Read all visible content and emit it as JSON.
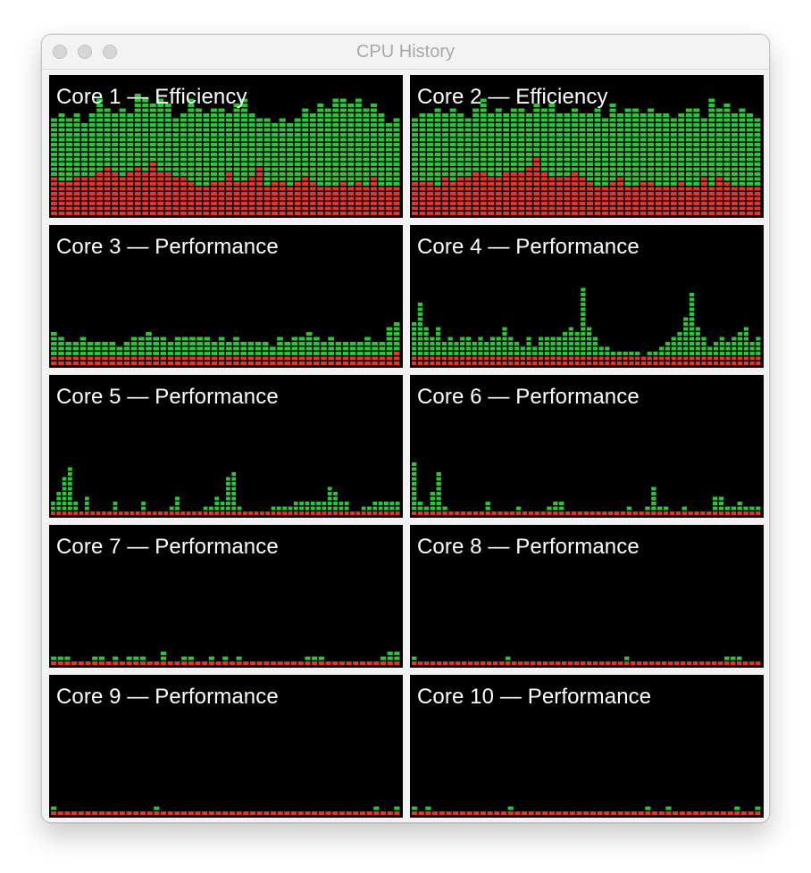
{
  "window": {
    "title": "CPU History"
  },
  "colors": {
    "user": "#2ec43a",
    "system": "#e8342b",
    "background": "#000000"
  },
  "cores": [
    {
      "label": "Core 1 — Efficiency",
      "total": [
        20,
        21,
        20,
        21,
        19,
        21,
        24,
        22,
        21,
        22,
        21,
        25,
        24,
        23,
        24,
        23,
        20,
        21,
        24,
        22,
        21,
        22,
        22,
        21,
        23,
        24,
        21,
        20,
        20,
        19,
        20,
        19,
        20,
        22,
        21,
        23,
        22,
        24,
        24,
        23,
        24,
        22,
        23,
        21,
        19,
        20
      ],
      "system": [
        8,
        7,
        7,
        8,
        8,
        8,
        9,
        10,
        9,
        8,
        9,
        10,
        9,
        11,
        9,
        9,
        8,
        8,
        7,
        6,
        6,
        7,
        7,
        9,
        7,
        7,
        8,
        10,
        6,
        7,
        7,
        6,
        7,
        8,
        7,
        6,
        6,
        6,
        7,
        6,
        7,
        6,
        8,
        6,
        6,
        6
      ]
    },
    {
      "label": "Core 2 — Efficiency",
      "total": [
        20,
        21,
        21,
        22,
        21,
        22,
        21,
        20,
        22,
        24,
        21,
        22,
        21,
        22,
        22,
        21,
        23,
        22,
        23,
        21,
        21,
        22,
        21,
        21,
        22,
        20,
        23,
        21,
        22,
        22,
        21,
        22,
        21,
        21,
        20,
        21,
        22,
        22,
        20,
        24,
        22,
        23,
        21,
        22,
        21,
        20
      ],
      "system": [
        7,
        7,
        7,
        6,
        8,
        7,
        8,
        8,
        9,
        9,
        8,
        8,
        9,
        9,
        9,
        10,
        12,
        9,
        8,
        8,
        8,
        9,
        8,
        7,
        6,
        6,
        7,
        8,
        6,
        6,
        7,
        7,
        6,
        6,
        6,
        7,
        6,
        6,
        8,
        6,
        8,
        7,
        6,
        6,
        6,
        6
      ]
    },
    {
      "label": "Core 3 — Performance",
      "total": [
        7,
        6,
        5,
        5,
        6,
        5,
        5,
        5,
        5,
        4,
        5,
        6,
        6,
        7,
        6,
        6,
        5,
        6,
        6,
        6,
        6,
        6,
        5,
        6,
        5,
        6,
        5,
        5,
        5,
        5,
        4,
        6,
        5,
        6,
        6,
        7,
        6,
        5,
        6,
        5,
        5,
        5,
        5,
        6,
        5,
        5,
        8,
        9
      ],
      "system": [
        2,
        2,
        2,
        2,
        2,
        2,
        2,
        2,
        2,
        2,
        2,
        2,
        2,
        2,
        2,
        2,
        2,
        2,
        2,
        2,
        2,
        2,
        2,
        2,
        2,
        2,
        2,
        2,
        2,
        2,
        2,
        2,
        2,
        2,
        2,
        2,
        2,
        2,
        2,
        2,
        2,
        2,
        2,
        2,
        2,
        2,
        2,
        3
      ]
    },
    {
      "label": "Core 4 — Performance",
      "total": [
        9,
        13,
        8,
        6,
        8,
        5,
        6,
        5,
        6,
        6,
        5,
        6,
        5,
        6,
        6,
        8,
        6,
        5,
        4,
        6,
        4,
        6,
        6,
        6,
        6,
        7,
        8,
        7,
        16,
        8,
        6,
        4,
        4,
        3,
        3,
        3,
        3,
        3,
        2,
        3,
        3,
        4,
        5,
        6,
        7,
        10,
        15,
        8,
        6,
        4,
        5,
        6,
        5,
        6,
        7,
        8,
        5,
        6
      ],
      "system": [
        2,
        2,
        2,
        2,
        2,
        2,
        2,
        2,
        2,
        2,
        2,
        2,
        2,
        2,
        2,
        2,
        2,
        2,
        2,
        2,
        2,
        2,
        2,
        2,
        2,
        2,
        2,
        2,
        2,
        2,
        2,
        2,
        2,
        2,
        2,
        2,
        2,
        2,
        2,
        2,
        2,
        2,
        2,
        2,
        2,
        2,
        2,
        2,
        2,
        2,
        2,
        2,
        2,
        2,
        2,
        2,
        2,
        2
      ]
    },
    {
      "label": "Core 5 — Performance",
      "total": [
        3,
        5,
        8,
        10,
        3,
        1,
        4,
        1,
        1,
        1,
        1,
        3,
        1,
        1,
        1,
        1,
        3,
        1,
        1,
        1,
        1,
        2,
        4,
        1,
        1,
        1,
        1,
        2,
        2,
        4,
        3,
        8,
        9,
        2,
        1,
        1,
        1,
        1,
        1,
        2,
        2,
        2,
        2,
        3,
        3,
        3,
        3,
        3,
        3,
        6,
        5,
        3,
        3,
        1,
        1,
        2,
        2,
        3,
        3,
        3,
        3,
        3
      ],
      "system": [
        1,
        1,
        1,
        1,
        1,
        1,
        1,
        1,
        1,
        1,
        1,
        1,
        1,
        1,
        1,
        1,
        1,
        1,
        1,
        1,
        1,
        1,
        1,
        1,
        1,
        1,
        1,
        1,
        1,
        1,
        1,
        1,
        1,
        1,
        1,
        1,
        1,
        1,
        1,
        1,
        1,
        1,
        1,
        1,
        1,
        1,
        1,
        1,
        1,
        1,
        1,
        1,
        1,
        1,
        1,
        1,
        1,
        1,
        1,
        1,
        1,
        1
      ]
    },
    {
      "label": "Core 6 — Performance",
      "total": [
        11,
        3,
        2,
        5,
        9,
        2,
        1,
        1,
        1,
        1,
        1,
        1,
        3,
        1,
        1,
        1,
        1,
        2,
        1,
        1,
        1,
        1,
        2,
        3,
        3,
        1,
        1,
        1,
        1,
        1,
        1,
        1,
        1,
        1,
        1,
        2,
        1,
        1,
        2,
        6,
        2,
        2,
        1,
        1,
        2,
        1,
        1,
        1,
        1,
        4,
        4,
        2,
        2,
        3,
        2,
        2,
        2
      ],
      "system": [
        1,
        1,
        1,
        1,
        1,
        1,
        1,
        1,
        1,
        1,
        1,
        1,
        1,
        1,
        1,
        1,
        1,
        1,
        1,
        1,
        1,
        1,
        1,
        1,
        1,
        1,
        1,
        1,
        1,
        1,
        1,
        1,
        1,
        1,
        1,
        1,
        1,
        1,
        1,
        1,
        1,
        1,
        1,
        1,
        1,
        1,
        1,
        1,
        1,
        1,
        1,
        1,
        1,
        1,
        1,
        1,
        1
      ]
    },
    {
      "label": "Core 7 — Performance",
      "total": [
        2,
        2,
        2,
        1,
        1,
        1,
        2,
        2,
        1,
        2,
        1,
        2,
        2,
        2,
        1,
        1,
        3,
        1,
        1,
        2,
        2,
        1,
        1,
        2,
        1,
        2,
        1,
        2,
        1,
        1,
        1,
        1,
        1,
        1,
        1,
        1,
        1,
        2,
        2,
        2,
        1,
        1,
        1,
        1,
        1,
        1,
        1,
        1,
        2,
        3,
        3
      ],
      "system": [
        1,
        1,
        1,
        1,
        1,
        1,
        1,
        1,
        1,
        1,
        1,
        1,
        1,
        1,
        1,
        1,
        1,
        1,
        1,
        1,
        1,
        1,
        1,
        1,
        1,
        1,
        1,
        1,
        1,
        1,
        1,
        1,
        1,
        1,
        1,
        1,
        1,
        1,
        1,
        1,
        1,
        1,
        1,
        1,
        1,
        1,
        1,
        1,
        1,
        1,
        1
      ]
    },
    {
      "label": "Core 8 — Performance",
      "total": [
        2,
        1,
        1,
        1,
        1,
        1,
        1,
        1,
        1,
        1,
        1,
        1,
        1,
        1,
        1,
        2,
        1,
        1,
        1,
        1,
        1,
        1,
        1,
        1,
        1,
        1,
        1,
        1,
        1,
        1,
        1,
        1,
        1,
        1,
        2,
        1,
        1,
        1,
        1,
        1,
        1,
        1,
        1,
        1,
        1,
        1,
        1,
        1,
        1,
        1,
        2,
        2,
        2,
        1,
        1,
        1
      ],
      "system": [
        1,
        1,
        1,
        1,
        1,
        1,
        1,
        1,
        1,
        1,
        1,
        1,
        1,
        1,
        1,
        1,
        1,
        1,
        1,
        1,
        1,
        1,
        1,
        1,
        1,
        1,
        1,
        1,
        1,
        1,
        1,
        1,
        1,
        1,
        1,
        1,
        1,
        1,
        1,
        1,
        1,
        1,
        1,
        1,
        1,
        1,
        1,
        1,
        1,
        1,
        1,
        1,
        1,
        1,
        1,
        1
      ]
    },
    {
      "label": "Core 9 — Performance",
      "total": [
        2,
        1,
        1,
        1,
        1,
        1,
        1,
        1,
        1,
        1,
        1,
        1,
        1,
        1,
        1,
        2,
        1,
        1,
        1,
        1,
        1,
        1,
        1,
        1,
        1,
        1,
        1,
        1,
        1,
        1,
        1,
        1,
        1,
        1,
        1,
        1,
        1,
        1,
        1,
        1,
        1,
        1,
        1,
        1,
        1,
        1,
        1,
        2,
        1,
        1,
        2
      ],
      "system": [
        1,
        1,
        1,
        1,
        1,
        1,
        1,
        1,
        1,
        1,
        1,
        1,
        1,
        1,
        1,
        1,
        1,
        1,
        1,
        1,
        1,
        1,
        1,
        1,
        1,
        1,
        1,
        1,
        1,
        1,
        1,
        1,
        1,
        1,
        1,
        1,
        1,
        1,
        1,
        1,
        1,
        1,
        1,
        1,
        1,
        1,
        1,
        1,
        1,
        1,
        1
      ]
    },
    {
      "label": "Core 10 — Performance",
      "total": [
        2,
        1,
        2,
        1,
        1,
        1,
        1,
        1,
        1,
        1,
        1,
        1,
        1,
        1,
        2,
        1,
        1,
        1,
        1,
        1,
        1,
        1,
        1,
        1,
        1,
        1,
        1,
        1,
        1,
        1,
        1,
        1,
        1,
        1,
        2,
        1,
        1,
        2,
        1,
        1,
        1,
        1,
        1,
        1,
        1,
        1,
        1,
        2,
        1,
        1,
        2
      ],
      "system": [
        1,
        1,
        1,
        1,
        1,
        1,
        1,
        1,
        1,
        1,
        1,
        1,
        1,
        1,
        1,
        1,
        1,
        1,
        1,
        1,
        1,
        1,
        1,
        1,
        1,
        1,
        1,
        1,
        1,
        1,
        1,
        1,
        1,
        1,
        1,
        1,
        1,
        1,
        1,
        1,
        1,
        1,
        1,
        1,
        1,
        1,
        1,
        1,
        1,
        1,
        1
      ]
    }
  ]
}
